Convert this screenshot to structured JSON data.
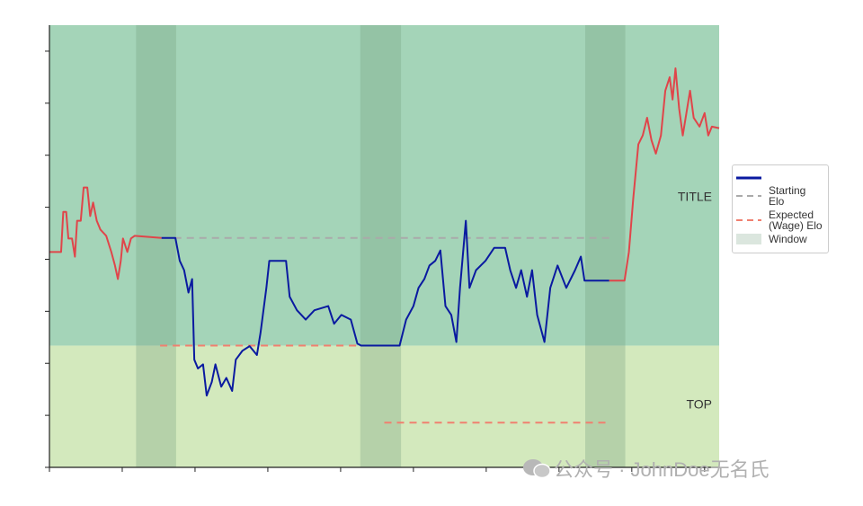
{
  "chart_data": {
    "type": "line",
    "xlim": [
      0,
      9.2
    ],
    "xticks": [
      0,
      1,
      2,
      3,
      4,
      5,
      6,
      7,
      8,
      9
    ],
    "ylim": [
      0,
      8.5
    ],
    "yticks": [
      0,
      1,
      2,
      3,
      4,
      5,
      6,
      7,
      8
    ],
    "zones": [
      {
        "label": "TITLE",
        "range": [
          2.34,
          8.5
        ],
        "color": "#a4d4b8"
      },
      {
        "label": "TOP",
        "range": [
          0,
          2.34
        ],
        "color": "#d3e9bd"
      }
    ],
    "window": {
      "name": "Window",
      "color": "#6f9a7a",
      "ranges": [
        [
          1.19,
          1.74
        ],
        [
          4.27,
          4.83
        ],
        [
          7.36,
          7.91
        ]
      ]
    },
    "starting_elo": {
      "name": "Starting Elo",
      "color": "#aaaaaa",
      "segments": [
        {
          "y": 4.41,
          "x": [
            1.54,
            7.69
          ]
        }
      ]
    },
    "expected_elo": {
      "name": "Expected (Wage) Elo",
      "color": "#f08070",
      "segments": [
        {
          "y": 2.34,
          "x": [
            1.52,
            4.5
          ]
        },
        {
          "y": 0.86,
          "x": [
            4.6,
            7.69
          ]
        }
      ]
    },
    "series": [
      {
        "color": "#e0454a",
        "x": [
          0,
          0.16,
          0.19,
          0.23,
          0.26,
          0.31,
          0.35,
          0.38,
          0.43,
          0.47,
          0.52,
          0.56,
          0.6,
          0.65,
          0.7,
          0.78,
          0.85,
          0.9,
          0.94,
          0.98,
          1.01,
          1.07,
          1.12,
          1.17,
          1.54
        ],
        "values": [
          4.14,
          4.14,
          4.91,
          4.91,
          4.4,
          4.4,
          4.05,
          4.74,
          4.74,
          5.38,
          5.38,
          4.83,
          5.09,
          4.74,
          4.57,
          4.45,
          4.14,
          3.88,
          3.62,
          3.97,
          4.4,
          4.14,
          4.4,
          4.45,
          4.41
        ]
      },
      {
        "color": "#0a1aa0",
        "x": [
          1.54,
          1.73,
          1.79,
          1.85,
          1.91,
          1.96,
          1.99,
          2.04,
          2.11,
          2.16,
          2.23,
          2.28,
          2.36,
          2.43,
          2.51,
          2.56,
          2.65,
          2.75,
          2.85,
          2.9,
          2.98,
          3.02,
          3.25,
          3.3,
          3.4,
          3.52,
          3.64,
          3.83,
          3.91,
          4.01,
          4.14,
          4.23,
          4.28,
          4.81,
          4.9,
          5.0,
          5.07,
          5.15,
          5.22,
          5.3,
          5.37,
          5.44,
          5.52,
          5.59,
          5.64,
          5.72,
          5.77,
          5.86,
          5.99,
          6.11,
          6.26,
          6.33,
          6.41,
          6.48,
          6.56,
          6.63,
          6.7,
          6.8,
          6.88,
          6.98,
          7.1,
          7.22,
          7.3,
          7.35,
          7.69
        ],
        "values": [
          4.41,
          4.41,
          3.97,
          3.79,
          3.36,
          3.62,
          2.07,
          1.9,
          1.98,
          1.38,
          1.64,
          1.98,
          1.55,
          1.72,
          1.47,
          2.07,
          2.24,
          2.33,
          2.16,
          2.59,
          3.45,
          3.97,
          3.97,
          3.28,
          3.02,
          2.84,
          3.02,
          3.1,
          2.76,
          2.93,
          2.84,
          2.38,
          2.34,
          2.34,
          2.84,
          3.1,
          3.45,
          3.62,
          3.88,
          3.97,
          4.17,
          3.1,
          2.93,
          2.41,
          3.45,
          4.74,
          3.45,
          3.79,
          3.97,
          4.22,
          4.22,
          3.79,
          3.45,
          3.79,
          3.28,
          3.79,
          2.93,
          2.41,
          3.45,
          3.88,
          3.45,
          3.79,
          4.05,
          3.59,
          3.59
        ]
      },
      {
        "color": "#e0454a",
        "x": [
          7.69,
          7.9,
          7.96,
          8.02,
          8.09,
          8.15,
          8.21,
          8.27,
          8.33,
          8.4,
          8.46,
          8.52,
          8.56,
          8.6,
          8.65,
          8.7,
          8.75,
          8.8,
          8.85,
          8.93,
          9.0,
          9.05,
          9.1,
          9.2
        ],
        "values": [
          3.59,
          3.59,
          4.14,
          5.17,
          6.21,
          6.38,
          6.72,
          6.29,
          6.03,
          6.38,
          7.24,
          7.5,
          7.07,
          7.67,
          6.9,
          6.38,
          6.81,
          7.24,
          6.72,
          6.55,
          6.81,
          6.38,
          6.55,
          6.52
        ]
      }
    ]
  },
  "watermark": "公众号 · JohnDoe无名氏"
}
